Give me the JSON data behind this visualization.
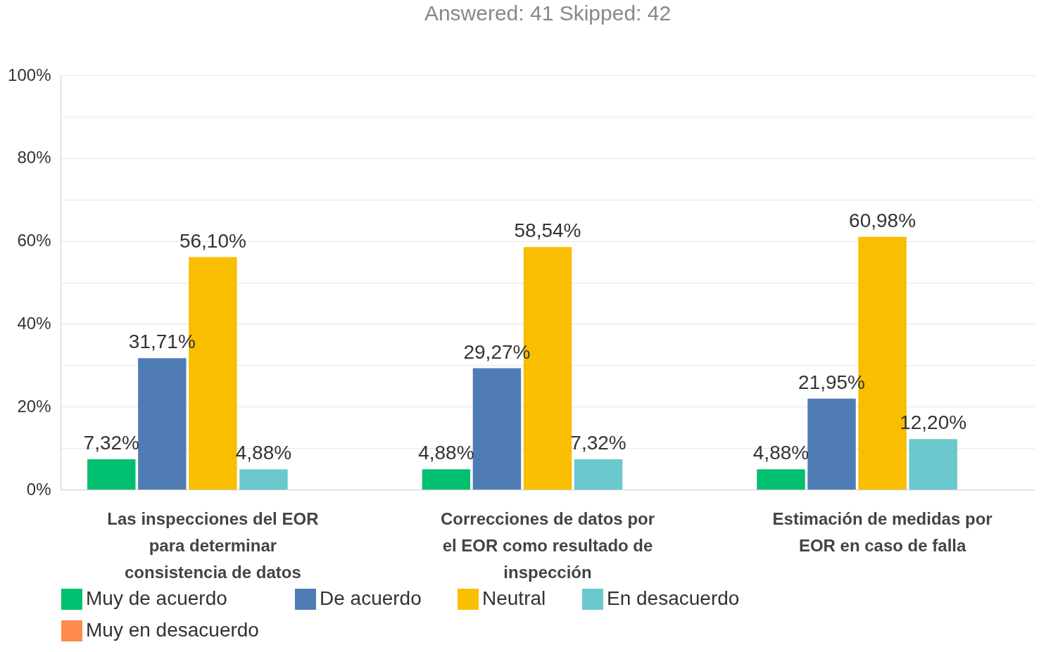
{
  "chart_data": {
    "type": "bar",
    "title": "Answered: 41    Skipped: 42",
    "categories": [
      "Las inspecciones del EOR para determinar consistencia de datos",
      "Correcciones de datos por el EOR como resultado de inspección",
      "Estimación de medidas por EOR en caso de falla"
    ],
    "series": [
      {
        "name": "Muy de acuerdo",
        "color": "#00bf6f",
        "values": [
          7.32,
          4.88,
          4.88
        ],
        "value_labels": [
          "7,32%",
          "4,88%",
          "4,88%"
        ]
      },
      {
        "name": "De acuerdo",
        "color": "#507cb6",
        "values": [
          31.71,
          29.27,
          21.95
        ],
        "value_labels": [
          "31,71%",
          "29,27%",
          "21,95%"
        ]
      },
      {
        "name": "Neutral",
        "color": "#f9be00",
        "values": [
          56.1,
          58.54,
          60.98
        ],
        "value_labels": [
          "56,10%",
          "58,54%",
          "60,98%"
        ]
      },
      {
        "name": "En desacuerdo",
        "color": "#6bc8cd",
        "values": [
          4.88,
          7.32,
          12.2
        ],
        "value_labels": [
          "4,88%",
          "7,32%",
          "12,20%"
        ]
      },
      {
        "name": "Muy en desacuerdo",
        "color": "#ff8b4f",
        "values": [
          0,
          0,
          0
        ],
        "value_labels": [
          null,
          null,
          null
        ]
      }
    ],
    "ylim": [
      0,
      100
    ],
    "yticks": [
      {
        "value": 0,
        "label": "0%"
      },
      {
        "value": 10,
        "label": null
      },
      {
        "value": 20,
        "label": "20%"
      },
      {
        "value": 30,
        "label": null
      },
      {
        "value": 40,
        "label": "40%"
      },
      {
        "value": 50,
        "label": null
      },
      {
        "value": 60,
        "label": "60%"
      },
      {
        "value": 70,
        "label": null
      },
      {
        "value": 80,
        "label": "80%"
      },
      {
        "value": 90,
        "label": null
      },
      {
        "value": 100,
        "label": "100%"
      }
    ],
    "grid": "y",
    "legend": "bottom"
  }
}
